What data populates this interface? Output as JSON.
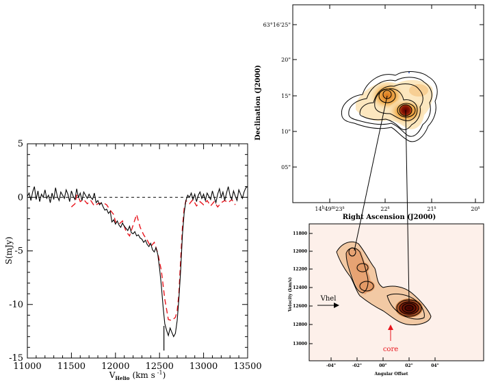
{
  "chart_data": [
    {
      "type": "line",
      "panel": "spectrum",
      "xlabel_main": "V",
      "xlabel_sub": "Helio",
      "xlabel_unit": "(km s",
      "xlabel_exp": "-1",
      "xlabel_close": ")",
      "ylabel": "S(mJy)",
      "xlim": [
        11000,
        13500
      ],
      "ylim": [
        -15,
        5
      ],
      "xticks": [
        11000,
        11500,
        12000,
        12500,
        13000,
        13500
      ],
      "yticks": [
        5,
        0,
        -5,
        -10,
        -15
      ],
      "xtick_labels": [
        "11000",
        "11500",
        "12000",
        "12500",
        "13000",
        "13500"
      ],
      "ytick_labels": [
        "5",
        "0",
        "-5",
        "-10",
        "-15"
      ],
      "baseline": 0,
      "marker_velocity": 12550,
      "series": [
        {
          "color": "#000000",
          "style": "solid",
          "points": [
            [
              11000,
              0.1
            ],
            [
              11020,
              0.4
            ],
            [
              11040,
              -0.3
            ],
            [
              11060,
              0.5
            ],
            [
              11080,
              1.0
            ],
            [
              11100,
              -0.2
            ],
            [
              11120,
              0.6
            ],
            [
              11140,
              -0.4
            ],
            [
              11160,
              0.3
            ],
            [
              11180,
              0.0
            ],
            [
              11200,
              0.7
            ],
            [
              11220,
              -0.1
            ],
            [
              11240,
              0.2
            ],
            [
              11260,
              -0.5
            ],
            [
              11280,
              0.4
            ],
            [
              11300,
              -0.2
            ],
            [
              11320,
              0.9
            ],
            [
              11340,
              0.1
            ],
            [
              11360,
              -0.3
            ],
            [
              11380,
              0.5
            ],
            [
              11400,
              0.2
            ],
            [
              11420,
              -0.1
            ],
            [
              11440,
              0.7
            ],
            [
              11460,
              0.3
            ],
            [
              11480,
              -0.4
            ],
            [
              11500,
              0.6
            ],
            [
              11520,
              0.1
            ],
            [
              11540,
              -0.2
            ],
            [
              11560,
              0.8
            ],
            [
              11580,
              0.0
            ],
            [
              11600,
              0.4
            ],
            [
              11620,
              -0.3
            ],
            [
              11640,
              0.5
            ],
            [
              11660,
              0.2
            ],
            [
              11680,
              -0.1
            ],
            [
              11700,
              0.3
            ],
            [
              11720,
              0.0
            ],
            [
              11740,
              -0.2
            ],
            [
              11760,
              0.4
            ],
            [
              11780,
              -0.5
            ],
            [
              11800,
              -0.3
            ],
            [
              11820,
              -0.7
            ],
            [
              11840,
              -0.5
            ],
            [
              11860,
              -0.9
            ],
            [
              11880,
              -1.2
            ],
            [
              11900,
              -1.1
            ],
            [
              11920,
              -1.5
            ],
            [
              11940,
              -1.3
            ],
            [
              11960,
              -2.3
            ],
            [
              11980,
              -2.1
            ],
            [
              12000,
              -2.5
            ],
            [
              12020,
              -2.2
            ],
            [
              12040,
              -2.6
            ],
            [
              12060,
              -2.8
            ],
            [
              12080,
              -2.4
            ],
            [
              12100,
              -2.7
            ],
            [
              12120,
              -2.9
            ],
            [
              12140,
              -3.1
            ],
            [
              12160,
              -2.7
            ],
            [
              12180,
              -3.3
            ],
            [
              12200,
              -3.4
            ],
            [
              12220,
              -3.2
            ],
            [
              12240,
              -3.6
            ],
            [
              12260,
              -3.5
            ],
            [
              12280,
              -3.8
            ],
            [
              12300,
              -3.9
            ],
            [
              12320,
              -4.2
            ],
            [
              12340,
              -4.0
            ],
            [
              12360,
              -4.4
            ],
            [
              12380,
              -4.6
            ],
            [
              12400,
              -4.3
            ],
            [
              12420,
              -4.9
            ],
            [
              12440,
              -5.1
            ],
            [
              12460,
              -4.7
            ],
            [
              12480,
              -5.3
            ],
            [
              12500,
              -6.6
            ],
            [
              12520,
              -8.2
            ],
            [
              12540,
              -10.2
            ],
            [
              12560,
              -11.8
            ],
            [
              12580,
              -12.4
            ],
            [
              12600,
              -12.9
            ],
            [
              12620,
              -12.2
            ],
            [
              12640,
              -12.6
            ],
            [
              12660,
              -13.0
            ],
            [
              12680,
              -12.7
            ],
            [
              12700,
              -11.5
            ],
            [
              12720,
              -9.5
            ],
            [
              12740,
              -6.8
            ],
            [
              12760,
              -3.5
            ],
            [
              12780,
              -1.4
            ],
            [
              12800,
              -0.3
            ],
            [
              12820,
              0.2
            ],
            [
              12840,
              0.0
            ],
            [
              12860,
              0.4
            ],
            [
              12880,
              -0.2
            ],
            [
              12900,
              0.3
            ],
            [
              12920,
              -0.4
            ],
            [
              12940,
              0.2
            ],
            [
              12960,
              0.5
            ],
            [
              12980,
              -0.1
            ],
            [
              13000,
              0.3
            ],
            [
              13020,
              -0.3
            ],
            [
              13040,
              0.4
            ],
            [
              13060,
              0.1
            ],
            [
              13080,
              -0.2
            ],
            [
              13100,
              0.6
            ],
            [
              13120,
              0.0
            ],
            [
              13140,
              -0.5
            ],
            [
              13160,
              0.3
            ],
            [
              13180,
              0.8
            ],
            [
              13200,
              0.0
            ],
            [
              13220,
              0.5
            ],
            [
              13240,
              -0.3
            ],
            [
              13260,
              0.4
            ],
            [
              13280,
              1.0
            ],
            [
              13300,
              0.2
            ],
            [
              13320,
              -0.2
            ],
            [
              13340,
              0.6
            ],
            [
              13360,
              0.1
            ],
            [
              13380,
              -0.3
            ],
            [
              13400,
              0.7
            ],
            [
              13420,
              0.3
            ],
            [
              13440,
              -0.1
            ],
            [
              13460,
              0.5
            ],
            [
              13480,
              0.9
            ],
            [
              13500,
              1.0
            ]
          ]
        },
        {
          "color": "#e8141c",
          "style": "dashed",
          "points": [
            [
              11500,
              -0.9
            ],
            [
              11540,
              -0.6
            ],
            [
              11560,
              0.2
            ],
            [
              11580,
              0.1
            ],
            [
              11600,
              -0.4
            ],
            [
              11640,
              -0.2
            ],
            [
              11680,
              -0.6
            ],
            [
              11720,
              -0.3
            ],
            [
              11760,
              -0.8
            ],
            [
              11800,
              -0.6
            ],
            [
              11860,
              -0.5
            ],
            [
              11900,
              -0.7
            ],
            [
              11940,
              -1.2
            ],
            [
              11980,
              -1.6
            ],
            [
              12000,
              -2.3
            ],
            [
              12040,
              -2.5
            ],
            [
              12080,
              -2.2
            ],
            [
              12120,
              -3.2
            ],
            [
              12160,
              -3.6
            ],
            [
              12200,
              -2.6
            ],
            [
              12240,
              -1.6
            ],
            [
              12280,
              -2.8
            ],
            [
              12320,
              -3.5
            ],
            [
              12360,
              -4.0
            ],
            [
              12400,
              -4.6
            ],
            [
              12440,
              -4.2
            ],
            [
              12480,
              -5.2
            ],
            [
              12520,
              -6.8
            ],
            [
              12560,
              -9.5
            ],
            [
              12600,
              -11.4
            ],
            [
              12640,
              -11.5
            ],
            [
              12680,
              -11.2
            ],
            [
              12700,
              -10.6
            ],
            [
              12720,
              -9.0
            ],
            [
              12740,
              -5.8
            ],
            [
              12760,
              -2.8
            ],
            [
              12780,
              -1.0
            ],
            [
              12800,
              -0.3
            ],
            [
              12840,
              -0.6
            ],
            [
              12880,
              -0.2
            ],
            [
              12920,
              -0.8
            ],
            [
              12960,
              -0.4
            ],
            [
              13000,
              -0.7
            ],
            [
              13040,
              -0.3
            ],
            [
              13080,
              -0.8
            ],
            [
              13120,
              -0.4
            ],
            [
              13160,
              -0.9
            ],
            [
              13200,
              -0.5
            ],
            [
              13240,
              -0.3
            ],
            [
              13280,
              -0.5
            ],
            [
              13320,
              -0.2
            ],
            [
              13360,
              -0.7
            ]
          ]
        }
      ]
    },
    {
      "type": "contour",
      "panel": "sky-map",
      "xlabel": "Right Ascension (J2000)",
      "ylabel": "Declination (J2000)",
      "xtick_labels": [
        "14h49m23s",
        "22s",
        "21s",
        "20s"
      ],
      "ytick_labels": [
        "63°16'25\"",
        "20\"",
        "15\"",
        "10\"",
        "05\""
      ],
      "xtick_main": "14",
      "xtick_h": "h",
      "xtick_mid": "49",
      "xtick_m": "m",
      "xtick_end": "23",
      "xtick_s": "s",
      "xtick_22": "22",
      "xtick_21": "21",
      "xtick_20": "20",
      "tick_s": "s",
      "components": [
        "north-west blob",
        "compact core (dark red)",
        "extended emission to the north-east"
      ]
    },
    {
      "type": "contour",
      "panel": "position-velocity",
      "xlabel": "Angular Offset",
      "ylabel": "Velocity (km/s)",
      "xtick_labels": [
        "-04\"",
        "-02\"",
        "00\"",
        "02\"",
        "04\""
      ],
      "ytick_labels": [
        "11800",
        "12000",
        "12200",
        "12400",
        "12600",
        "12800",
        "13000"
      ],
      "annotations": [
        {
          "text": "Vhel",
          "color": "#000000"
        },
        {
          "text": "core",
          "color": "#e8141c"
        }
      ]
    }
  ]
}
